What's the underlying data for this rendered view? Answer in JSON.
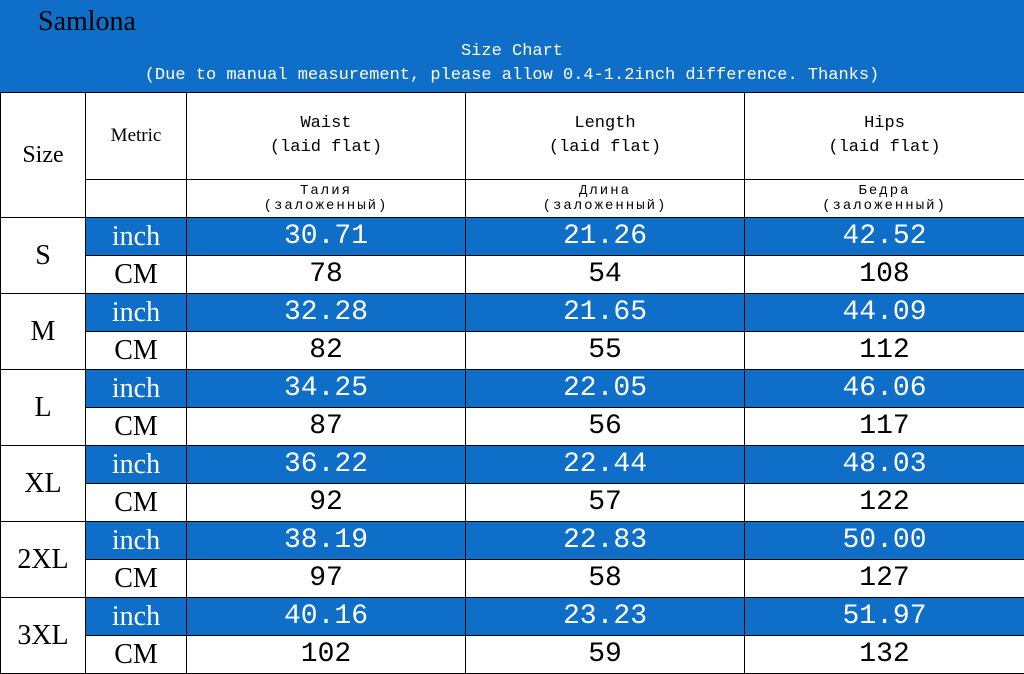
{
  "brand": "Samlona",
  "title": "Size Chart",
  "note": "(Due to manual measurement, please allow 0.4-1.2inch difference. Thanks)",
  "headers": {
    "size": "Size",
    "metric": "Metric",
    "columns": [
      {
        "name": "Waist",
        "sub": "(laid flat)",
        "ru_name": "Талия",
        "ru_sub": "(заложенный)"
      },
      {
        "name": "Length",
        "sub": "(laid flat)",
        "ru_name": "Длина",
        "ru_sub": "(заложенный)"
      },
      {
        "name": "Hips",
        "sub": "(laid flat)",
        "ru_name": "Бедра",
        "ru_sub": "(заложенный)"
      }
    ]
  },
  "rows": [
    {
      "size": "S",
      "inch_label": "inch",
      "cm_label": "CM",
      "inch": [
        "30.71",
        "21.26",
        "42.52"
      ],
      "cm": [
        "78",
        "54",
        "108"
      ]
    },
    {
      "size": "M",
      "inch_label": "inch",
      "cm_label": "CM",
      "inch": [
        "32.28",
        "21.65",
        "44.09"
      ],
      "cm": [
        "82",
        "55",
        "112"
      ]
    },
    {
      "size": "L",
      "inch_label": "inch",
      "cm_label": "CM",
      "inch": [
        "34.25",
        "22.05",
        "46.06"
      ],
      "cm": [
        "87",
        "56",
        "117"
      ]
    },
    {
      "size": "XL",
      "inch_label": "inch",
      "cm_label": "CM",
      "inch": [
        "36.22",
        "22.44",
        "48.03"
      ],
      "cm": [
        "92",
        "57",
        "122"
      ]
    },
    {
      "size": "2XL",
      "inch_label": "inch",
      "cm_label": "CM",
      "inch": [
        "38.19",
        "22.83",
        "50.00"
      ],
      "cm": [
        "97",
        "58",
        "127"
      ]
    },
    {
      "size": "3XL",
      "inch_label": "inch",
      "cm_label": "CM",
      "inch": [
        "40.16",
        "23.23",
        "51.97"
      ],
      "cm": [
        "102",
        "59",
        "132"
      ]
    }
  ],
  "colors": {
    "header_bg": "#0f6ec8",
    "inch_row_bg": "#0f6ec8",
    "text_on_blue": "#ffffff"
  }
}
